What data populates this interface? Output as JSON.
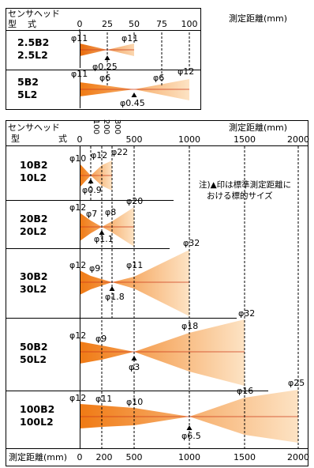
{
  "top": {
    "header_model": [
      "センサヘッド",
      "型式"
    ],
    "header_distance": "測定距離(mm)",
    "ticks": [
      "0",
      "25",
      "50",
      "75",
      "100"
    ],
    "rows": [
      {
        "models": [
          "2.5B2",
          "2.5L2"
        ],
        "labels": [
          "φ11",
          "φ11",
          "φ0.25"
        ]
      },
      {
        "models": [
          "5B2",
          "5L2"
        ],
        "labels": [
          "φ11",
          "φ6",
          "φ6",
          "φ12",
          "φ0.45"
        ]
      }
    ]
  },
  "bottom": {
    "header_model": [
      "センサヘッド",
      "型",
      "式"
    ],
    "header_distance": "測定距離(mm)",
    "ticks_top": [
      "0",
      "100",
      "200",
      "300",
      "500",
      "1000",
      "1500",
      "2000"
    ],
    "note": [
      "注)▲印は標準測定距離に",
      "おける標的サイズ"
    ],
    "rows": [
      {
        "models": [
          "10B2",
          "10L2"
        ],
        "labels": [
          "φ10",
          "φ12",
          "φ22",
          "φ0.9"
        ]
      },
      {
        "models": [
          "20B2",
          "20L2"
        ],
        "labels": [
          "φ12",
          "φ7",
          "φ8",
          "φ20",
          "φ1.1"
        ]
      },
      {
        "models": [
          "30B2",
          "30L2"
        ],
        "labels": [
          "φ12",
          "φ9",
          "φ11",
          "φ32",
          "φ1.8"
        ]
      },
      {
        "models": [
          "50B2",
          "50L2"
        ],
        "labels": [
          "φ12",
          "φ9",
          "φ18",
          "φ32",
          "φ3"
        ]
      },
      {
        "models": [
          "100B2",
          "100L2"
        ],
        "labels": [
          "φ12",
          "φ11",
          "φ10",
          "φ16",
          "φ25",
          "φ6.5"
        ]
      }
    ],
    "footer_label": "測定距離(mm)",
    "ticks_bottom": [
      "0",
      "200",
      "500",
      "1000",
      "1500",
      "2000"
    ]
  }
}
